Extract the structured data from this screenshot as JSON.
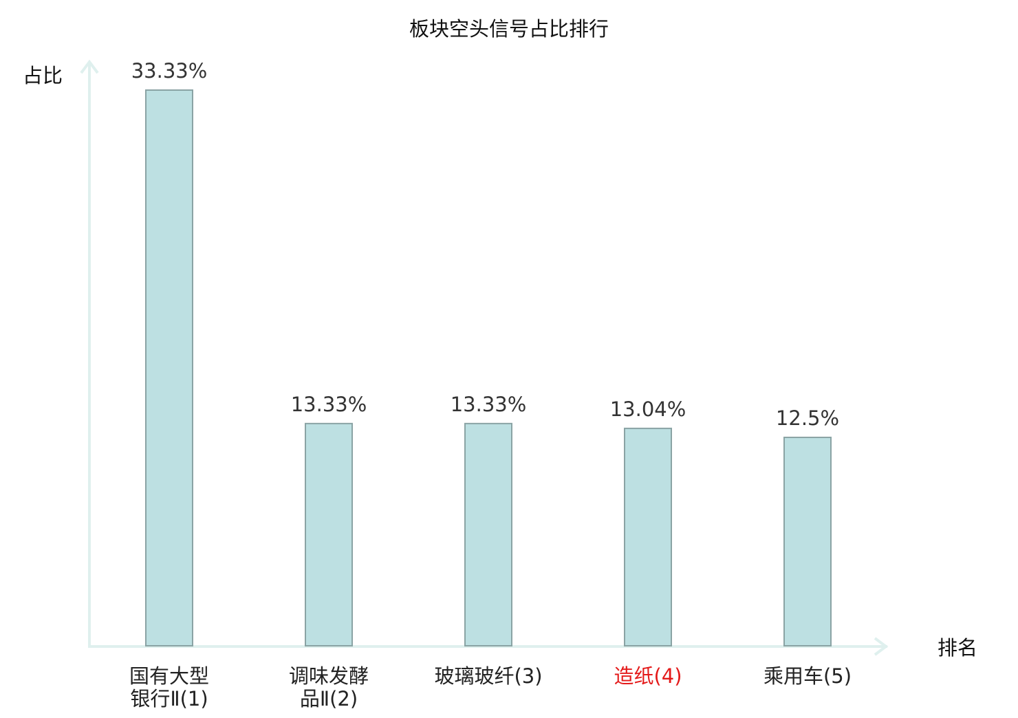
{
  "chart_data": {
    "type": "bar",
    "title": "板块空头信号占比排行",
    "ylabel": "占比",
    "xlabel": "排名",
    "categories": [
      [
        "国有大型",
        "银行Ⅱ(1)"
      ],
      [
        "调味发酵",
        "品Ⅱ(2)"
      ],
      [
        "玻璃玻纤(3)"
      ],
      [
        "造纸(4)"
      ],
      [
        "乘用车(5)"
      ]
    ],
    "values": [
      33.33,
      13.33,
      13.33,
      13.04,
      12.5
    ],
    "value_labels": [
      "33.33%",
      "13.33%",
      "13.33%",
      "13.04%",
      "12.5%"
    ],
    "highlight_index": 3,
    "ylim": [
      0,
      33.33
    ],
    "grid": false,
    "legend": "none"
  },
  "colors": {
    "bar_fill": "#bde0e2",
    "bar_stroke": "#8aa3a4",
    "axis": "#dff0ee",
    "label_default": "#222222",
    "label_highlight": "#e41a1a",
    "value_text": "#333333"
  }
}
